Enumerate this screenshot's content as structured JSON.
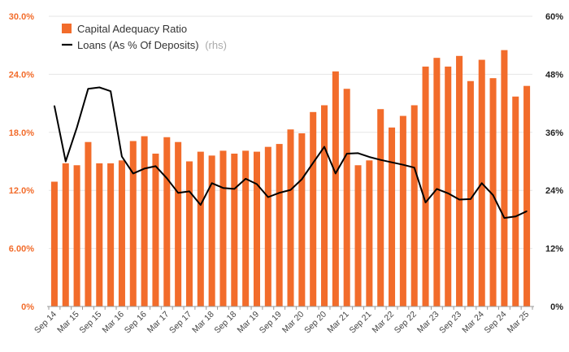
{
  "chart_data": {
    "type": "bar",
    "categories": [
      "Sep 14",
      "Dec 14",
      "Mar 15",
      "Jun 15",
      "Sep 15",
      "Dec 15",
      "Mar 16",
      "Jun 16",
      "Sep 16",
      "Dec 16",
      "Mar 17",
      "Jun 17",
      "Sep 17",
      "Dec 17",
      "Mar 18",
      "Jun 18",
      "Sep 18",
      "Dec 18",
      "Mar 19",
      "Jun 19",
      "Sep 19",
      "Dec 19",
      "Mar 20",
      "Jun 20",
      "Sep 20",
      "Dec 20",
      "Mar 21",
      "Jun 21",
      "Sep 21",
      "Dec 21",
      "Mar 22",
      "Jun 22",
      "Sep 22",
      "Dec 22",
      "Mar 23",
      "Jun 23",
      "Sep 23",
      "Dec 23",
      "Mar 24",
      "Jun 24",
      "Sep 24",
      "Dec 24",
      "Mar 25"
    ],
    "x_tick_labels": [
      "Sep 14",
      "Mar 15",
      "Sep 15",
      "Mar 16",
      "Sep 16",
      "Mar 17",
      "Sep 17",
      "Mar 18",
      "Sep 18",
      "Mar 19",
      "Sep 19",
      "Mar 20",
      "Sep 20",
      "Mar 21",
      "Sep 21",
      "Mar 22",
      "Sep 22",
      "Mar 23",
      "Sep 23",
      "Mar 24",
      "Sep 24",
      "Mar 25"
    ],
    "series": [
      {
        "name": "Capital Adequacy Ratio",
        "axis": "left",
        "kind": "bar",
        "color": "#f26c2b",
        "values": [
          12.9,
          14.8,
          14.6,
          17.0,
          14.8,
          14.8,
          15.1,
          17.1,
          17.6,
          15.8,
          17.5,
          17.0,
          15.0,
          16.0,
          15.6,
          16.1,
          15.8,
          16.1,
          16.0,
          16.5,
          16.8,
          18.3,
          17.9,
          20.1,
          20.8,
          24.3,
          22.5,
          14.6,
          15.1,
          20.4,
          18.5,
          19.7,
          20.8,
          24.8,
          25.7,
          24.8,
          25.9,
          23.3,
          25.5,
          23.6,
          26.5,
          21.7,
          22.8
        ]
      },
      {
        "name": "Loans (As % Of Deposits)",
        "name_suffix": "(rhs)",
        "axis": "right",
        "kind": "line",
        "color": "#000000",
        "values": [
          41.5,
          30.0,
          37.0,
          45.0,
          45.3,
          44.5,
          31.0,
          27.5,
          28.5,
          29.0,
          26.5,
          23.5,
          23.8,
          21.0,
          25.5,
          24.5,
          24.3,
          26.4,
          25.3,
          22.6,
          23.5,
          24.1,
          26.3,
          29.7,
          33.0,
          27.5,
          31.6,
          31.7,
          30.9,
          30.3,
          29.8,
          29.3,
          28.7,
          21.5,
          24.3,
          23.4,
          22.1,
          22.2,
          25.5,
          23.0,
          18.3,
          18.6,
          19.7
        ]
      }
    ],
    "y_left": {
      "lim": [
        0,
        30
      ],
      "ticks": [
        0,
        6,
        12,
        18,
        24,
        30
      ],
      "tick_labels": [
        "0%",
        "6.00%",
        "12.0%",
        "18.0%",
        "24.0%",
        "30.0%"
      ],
      "color": "#f26c2b"
    },
    "y_right": {
      "lim": [
        0,
        60
      ],
      "ticks": [
        0,
        12,
        24,
        36,
        48,
        60
      ],
      "tick_labels": [
        "0%",
        "12%",
        "24%",
        "36%",
        "48%",
        "60%"
      ],
      "color": "#222222"
    },
    "grid": true,
    "legend_position": "top-left"
  }
}
